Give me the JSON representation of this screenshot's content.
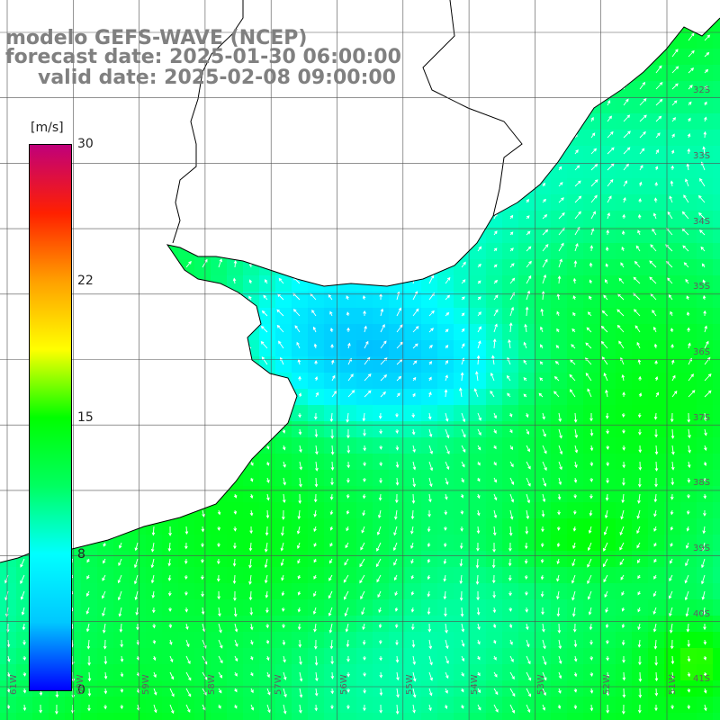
{
  "title": {
    "model": "modelo GEFS-WAVE (NCEP)",
    "forecast": "forecast date: 2025-01-30 06:00:00",
    "valid": "valid date: 2025-02-08 09:00:00"
  },
  "colorbar": {
    "unit": "[m/s]",
    "ticks": [
      "30",
      "22",
      "15",
      "8",
      "0"
    ],
    "range": [
      0,
      30
    ],
    "colors": [
      "#0000ff",
      "#00c8ff",
      "#00ffff",
      "#00ff60",
      "#00ff00",
      "#ffff00",
      "#ffa000",
      "#ff2000",
      "#c0007a"
    ]
  },
  "map": {
    "parameter": "wind speed and direction",
    "lat_labels": [
      "32S",
      "33S",
      "34S",
      "35S",
      "36S",
      "37S",
      "38S",
      "39S",
      "40S",
      "41S"
    ],
    "lon_labels": [
      "61W",
      "60W",
      "59W",
      "58W",
      "57W",
      "56W",
      "55W",
      "54W",
      "53W",
      "52W",
      "51W"
    ],
    "land_color": "#ffffff",
    "coast_color": "#000000",
    "grid_color": "#505050"
  }
}
